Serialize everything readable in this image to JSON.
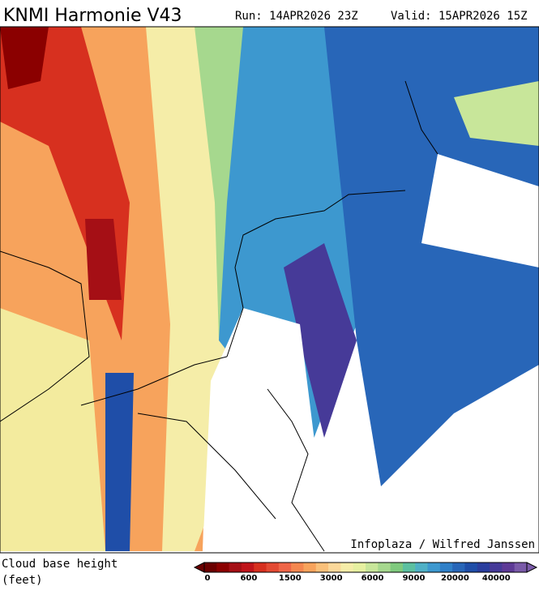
{
  "header": {
    "title": "KNMI Harmonie V43",
    "run": "Run: 14APR2026 23Z",
    "valid": "Valid: 15APR2026 15Z"
  },
  "map": {
    "credit": "Infoplaza / Wilfred Janssen"
  },
  "legend": {
    "label_line1": "Cloud base height",
    "label_line2": "(feet)",
    "colors": [
      "#6b0000",
      "#8b0000",
      "#a50f15",
      "#c0141a",
      "#d7301f",
      "#e34a33",
      "#ef6548",
      "#f4874f",
      "#f7a35c",
      "#f9c07a",
      "#fbd89a",
      "#f5eda8",
      "#e6f0a0",
      "#c8e69a",
      "#a6d88e",
      "#7fca7e",
      "#5cc0a0",
      "#4fb0c6",
      "#3d98cf",
      "#3080c8",
      "#2866b8",
      "#1f4ea8",
      "#2a3e9e",
      "#463a98",
      "#5e3a96",
      "#7a5aa8"
    ],
    "labels": [
      "0",
      "600",
      "1500",
      "3000",
      "6000",
      "9000",
      "20000",
      "40000"
    ]
  }
}
